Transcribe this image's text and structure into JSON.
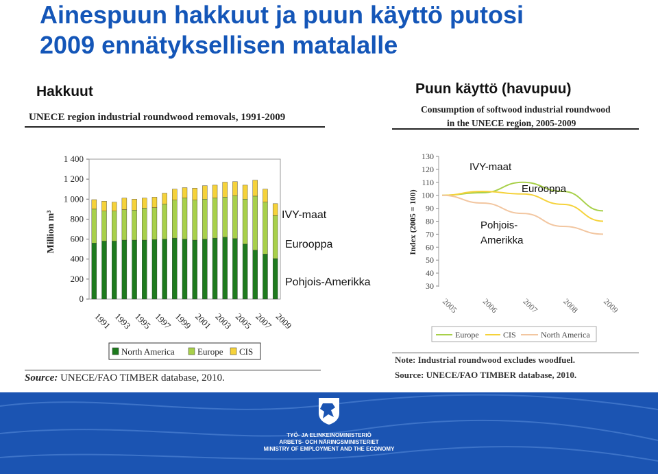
{
  "slide": {
    "title_line1": "Ainespuun hakkuut ja puun käyttö putosi",
    "title_line2": "2009 ennätyksellisen matalalle",
    "left_heading": "Hakkuut",
    "right_heading": "Puun käyttö (havupuu)"
  },
  "left_chart_title": "UNECE region industrial roundwood removals, 1991-2009",
  "left_source_label": "Source:",
  "left_source": "UNECE/FAO TIMBER database, 2010.",
  "left_annotations": [
    "IVY-maat",
    "Eurooppa",
    "Pohjois-Amerikka"
  ],
  "right_chart_title_line1": "Consumption of softwood industrial roundwood",
  "right_chart_title_line2": "in the UNECE region, 2005-2009",
  "right_annotations": [
    "IVY-maat",
    "Eurooppa",
    "Pohjois-",
    "Amerikka"
  ],
  "right_note": "Note: Industrial roundwood excludes woodfuel.",
  "right_source": "Source: UNECE/FAO TIMBER database, 2010.",
  "footer_lines": [
    "TYÖ- JA ELINKEINOMINISTERIÖ",
    "ARBETS- OCH NÄRINGSMINISTERIET",
    "MINISTRY OF EMPLOYMENT AND THE ECONOMY"
  ],
  "colors": {
    "north_america": "#1e7a1e",
    "europe": "#a8d04a",
    "cis": "#f5d23a",
    "title_blue": "#1456b8",
    "footer_blue": "#1b54b2"
  },
  "chart_data": [
    {
      "type": "bar",
      "stacked": true,
      "ylabel": "Million m³",
      "ylim": [
        0,
        1400
      ],
      "yticks": [
        "0",
        "200",
        "400",
        "600",
        "800",
        "1 000",
        "1 200",
        "1 400"
      ],
      "categories": [
        "1991",
        "1992",
        "1993",
        "1994",
        "1995",
        "1996",
        "1997",
        "1998",
        "1999",
        "2000",
        "2001",
        "2002",
        "2003",
        "2004",
        "2005",
        "2006",
        "2007",
        "2008",
        "2009"
      ],
      "xtick_labels": [
        "1991",
        "1993",
        "1995",
        "1997",
        "1999",
        "2001",
        "2003",
        "2005",
        "2007",
        "2009"
      ],
      "series": [
        {
          "name": "North America",
          "color": "#1e7a1e",
          "values": [
            560,
            580,
            580,
            590,
            590,
            590,
            595,
            600,
            610,
            600,
            590,
            600,
            610,
            620,
            605,
            550,
            490,
            450,
            405
          ]
        },
        {
          "name": "Europe",
          "color": "#a8d04a",
          "values": [
            340,
            300,
            300,
            305,
            300,
            320,
            320,
            350,
            380,
            410,
            400,
            400,
            400,
            400,
            430,
            450,
            540,
            520,
            430
          ]
        },
        {
          "name": "CIS",
          "color": "#f5d23a",
          "values": [
            95,
            100,
            90,
            115,
            110,
            100,
            105,
            110,
            110,
            105,
            120,
            135,
            130,
            150,
            140,
            140,
            160,
            130,
            120
          ]
        }
      ],
      "legend": [
        "North America",
        "Europe",
        "CIS"
      ],
      "legend_position": "bottom"
    },
    {
      "type": "line",
      "ylabel": "Index (2005 = 100)",
      "ylim": [
        30,
        130
      ],
      "yticks": [
        "30",
        "40",
        "50",
        "60",
        "70",
        "80",
        "90",
        "100",
        "110",
        "120",
        "130"
      ],
      "x": [
        "2005",
        "2006",
        "2007",
        "2008",
        "2009"
      ],
      "series": [
        {
          "name": "Europe",
          "color": "#a8d04a",
          "values": [
            100,
            102,
            110,
            103,
            88
          ]
        },
        {
          "name": "CIS",
          "color": "#f5d23a",
          "values": [
            100,
            103,
            101,
            93,
            80
          ]
        },
        {
          "name": "North America",
          "color": "#f2c6a0",
          "values": [
            100,
            94,
            86,
            76,
            70
          ]
        }
      ],
      "legend": [
        "Europe",
        "CIS",
        "North America"
      ],
      "legend_position": "bottom"
    }
  ]
}
